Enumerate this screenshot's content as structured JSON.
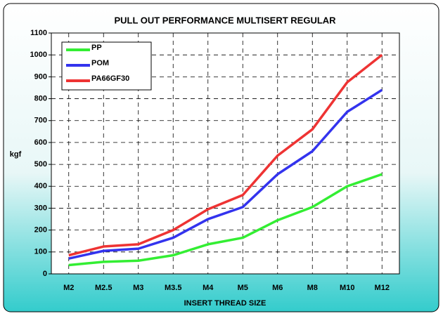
{
  "chart_data": {
    "type": "line",
    "title": "PULL OUT PERFORMANCE MULTISERT REGULAR",
    "x_label": "INSERT THREAD SIZE",
    "y_label": "kgf",
    "categories": [
      "M2",
      "M2.5",
      "M3",
      "M3.5",
      "M4",
      "M5",
      "M6",
      "M8",
      "M10",
      "M12"
    ],
    "series": [
      {
        "name": "PP",
        "color": "#33ee33",
        "values": [
          40,
          55,
          60,
          85,
          135,
          165,
          245,
          305,
          400,
          455
        ]
      },
      {
        "name": "POM",
        "color": "#3333ee",
        "values": [
          70,
          105,
          115,
          165,
          250,
          305,
          455,
          560,
          740,
          840
        ]
      },
      {
        "name": "PA66GF30",
        "color": "#ee3333",
        "values": [
          85,
          125,
          135,
          200,
          295,
          360,
          540,
          660,
          875,
          1000
        ]
      }
    ],
    "ylim": [
      0,
      1100
    ],
    "yticks": [
      0,
      100,
      200,
      300,
      400,
      500,
      600,
      700,
      800,
      900,
      1000,
      1100
    ],
    "grid": true,
    "legend": "upper left"
  }
}
